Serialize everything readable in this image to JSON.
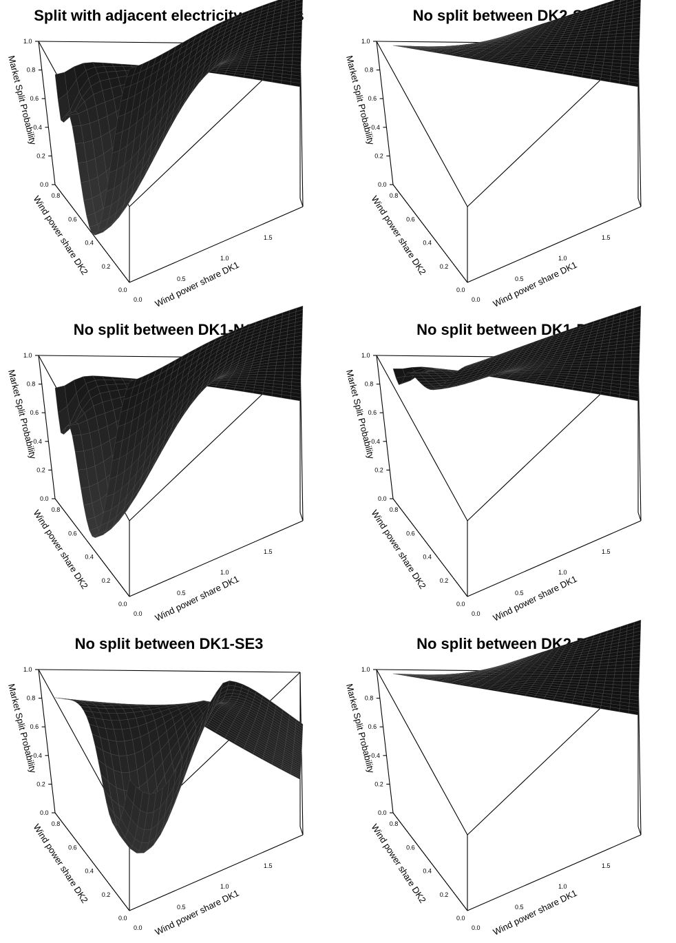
{
  "chart_data": [
    {
      "type": "surface",
      "title": "Split with adjacent electricity markets",
      "zlabel": "Market Split Probability",
      "ylabel": "Wind power share DK2",
      "xlabel": "Wind power share DK1",
      "x_ticks": [
        "0.0",
        "0.5",
        "1.0",
        "1.5"
      ],
      "y_ticks": [
        "0.0",
        "0.2",
        "0.4",
        "0.6",
        "0.8"
      ],
      "z_ticks": [
        "0.0",
        "0.2",
        "0.4",
        "0.6",
        "0.8",
        "1.0"
      ],
      "xlim": [
        0,
        2.0
      ],
      "ylim": [
        0,
        0.9
      ],
      "zlim": [
        0,
        1
      ],
      "surface": {
        "plateau": 1.0,
        "valley_min": 0.02,
        "valley_at_x": 0.0,
        "valley_at_y": 0.45,
        "notch_min": 0.58
      }
    },
    {
      "type": "surface",
      "title": "No split between DK2-SE4",
      "zlabel": "Market Split Probability",
      "ylabel": "Wind power share DK2",
      "xlabel": "Wind power share DK1",
      "x_ticks": [
        "0.0",
        "0.5",
        "1.0",
        "1.5"
      ],
      "y_ticks": [
        "0.0",
        "0.2",
        "0.4",
        "0.6",
        "0.8"
      ],
      "z_ticks": [
        "0.0",
        "0.2",
        "0.4",
        "0.6",
        "0.8",
        "1.0"
      ],
      "xlim": [
        0,
        2.0
      ],
      "ylim": [
        0,
        0.9
      ],
      "zlim": [
        0,
        1
      ],
      "surface": {
        "plateau": 1.0,
        "valley_min": 1.0,
        "valley_at_x": 0.0,
        "valley_at_y": 0.45,
        "notch_min": 1.0
      }
    },
    {
      "type": "surface",
      "title": "No split between DK1-NO2",
      "zlabel": "Market Split Probability",
      "ylabel": "Wind power share DK2",
      "xlabel": "Wind power share DK1",
      "x_ticks": [
        "0.0",
        "0.5",
        "1.0",
        "1.5"
      ],
      "y_ticks": [
        "0.0",
        "0.2",
        "0.4",
        "0.6",
        "0.8"
      ],
      "z_ticks": [
        "0.0",
        "0.2",
        "0.4",
        "0.6",
        "0.8",
        "1.0"
      ],
      "xlim": [
        0,
        2.0
      ],
      "ylim": [
        0,
        0.9
      ],
      "zlim": [
        0,
        1
      ],
      "surface": {
        "plateau": 1.0,
        "valley_min": 0.08,
        "valley_at_x": 0.0,
        "valley_at_y": 0.5,
        "notch_min": 0.58
      }
    },
    {
      "type": "surface",
      "title": "No split between DK1-DE",
      "zlabel": "Market Split Probability",
      "ylabel": "Wind power share DK2",
      "xlabel": "Wind power share DK1",
      "x_ticks": [
        "0.0",
        "0.5",
        "1.0",
        "1.5"
      ],
      "y_ticks": [
        "0.0",
        "0.2",
        "0.4",
        "0.6",
        "0.8"
      ],
      "z_ticks": [
        "0.0",
        "0.2",
        "0.4",
        "0.6",
        "0.8",
        "1.0"
      ],
      "xlim": [
        0,
        2.0
      ],
      "ylim": [
        0,
        0.9
      ],
      "zlim": [
        0,
        1
      ],
      "surface": {
        "plateau": 1.0,
        "valley_min": 0.85,
        "valley_at_x": 0.0,
        "valley_at_y": 0.5,
        "notch_min": 0.82
      }
    },
    {
      "type": "surface",
      "title": "No split between DK1-SE3",
      "zlabel": "Market Split Probability",
      "ylabel": "Wind power share DK2",
      "xlabel": "Wind power share DK1",
      "x_ticks": [
        "0.0",
        "0.5",
        "1.0",
        "1.5"
      ],
      "y_ticks": [
        "0.0",
        "0.2",
        "0.4",
        "0.6",
        "0.8"
      ],
      "z_ticks": [
        "0.0",
        "0.2",
        "0.4",
        "0.6",
        "0.8",
        "1.0"
      ],
      "xlim": [
        0,
        2.0
      ],
      "ylim": [
        0,
        0.9
      ],
      "zlim": [
        0,
        1
      ],
      "surface": {
        "dome_max": 0.92,
        "dome_min": 0.18,
        "edge_high": 0.75,
        "x_decay_end": 0.55
      }
    },
    {
      "type": "surface",
      "title": "No split between DK2-DE",
      "zlabel": "Market Split Probability",
      "ylabel": "Wind power share DK2",
      "xlabel": "Wind power share DK1",
      "x_ticks": [
        "0.0",
        "0.5",
        "1.0",
        "1.5"
      ],
      "y_ticks": [
        "0.0",
        "0.2",
        "0.4",
        "0.6",
        "0.8"
      ],
      "z_ticks": [
        "0.0",
        "0.2",
        "0.4",
        "0.6",
        "0.8",
        "1.0"
      ],
      "xlim": [
        0,
        2.0
      ],
      "ylim": [
        0,
        0.9
      ],
      "zlim": [
        0,
        1
      ],
      "surface": {
        "plateau": 1.0,
        "valley_min": 1.0,
        "valley_at_x": 0.0,
        "valley_at_y": 0.45,
        "notch_min": 1.0
      }
    }
  ]
}
